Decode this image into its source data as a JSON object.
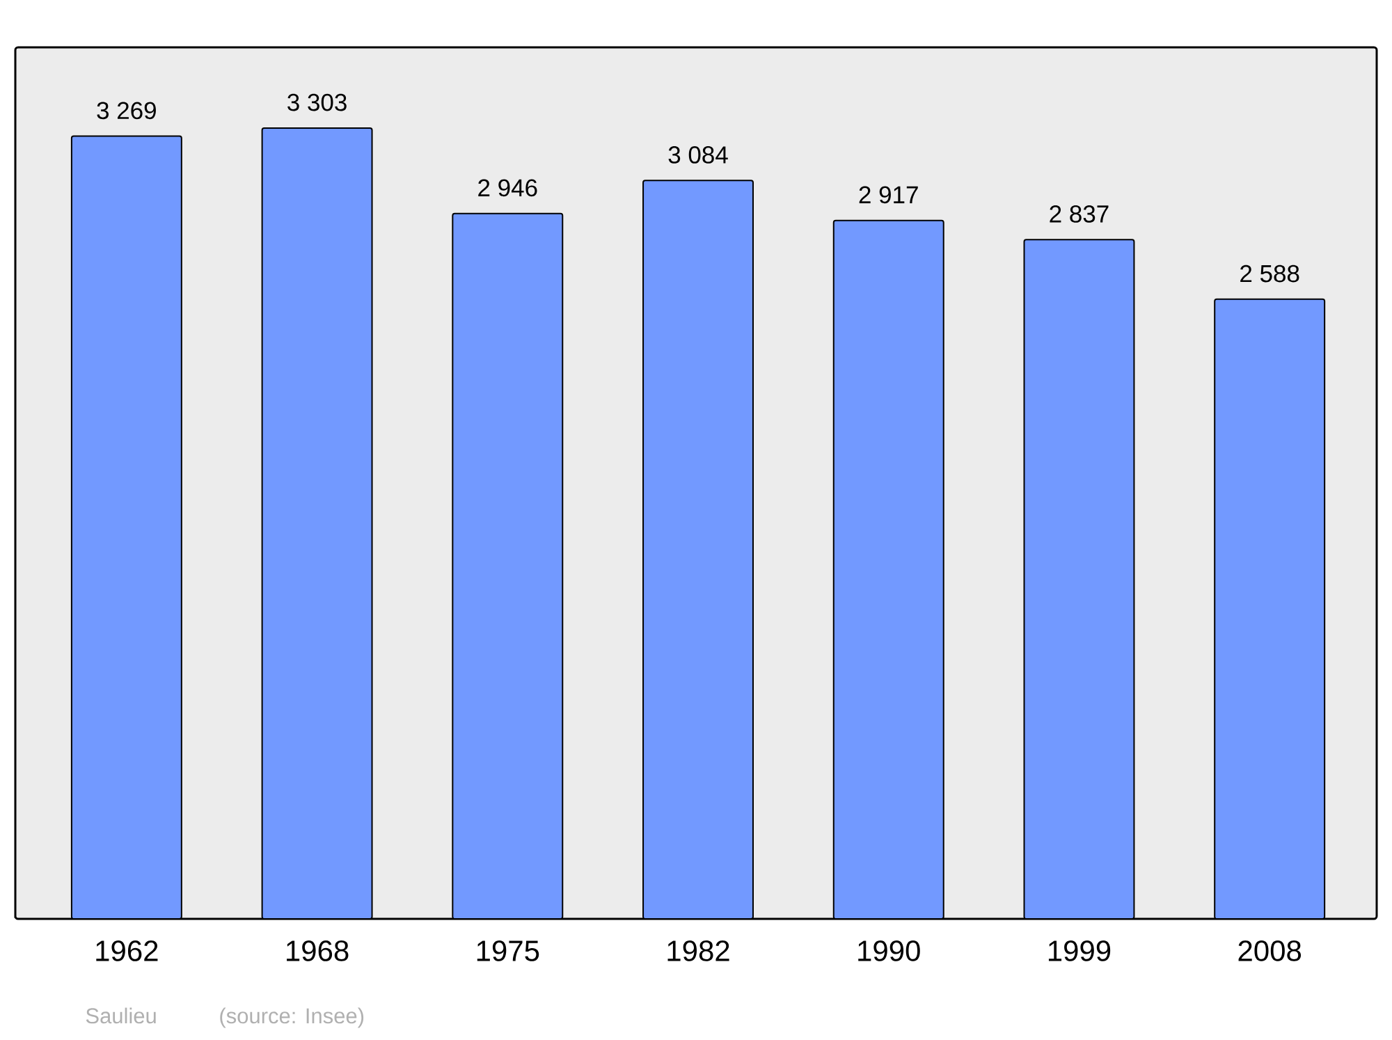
{
  "chart_data": {
    "type": "bar",
    "categories": [
      "1962",
      "1968",
      "1975",
      "1982",
      "1990",
      "1999",
      "2008"
    ],
    "values": [
      3269,
      3303,
      2946,
      3084,
      2917,
      2837,
      2588
    ],
    "value_labels": [
      "3 269",
      "3 303",
      "2 946",
      "3 084",
      "2 917",
      "2 837",
      "2 588"
    ],
    "color": "#7299ff",
    "ylim": [
      0,
      3640
    ],
    "tick_labels": "x",
    "annotations": [
      "Saulieu",
      "(source: Insee)"
    ]
  }
}
